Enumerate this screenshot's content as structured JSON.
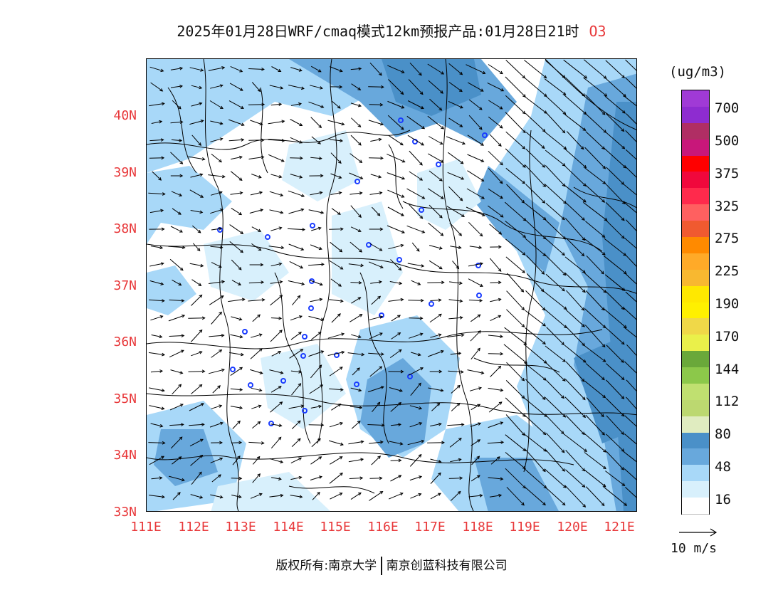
{
  "title": {
    "main": "2025年01月28日WRF/cmaq模式12km预报产品:01月28日21时",
    "species": "O3"
  },
  "axes": {
    "lat_labels": [
      "40N",
      "39N",
      "38N",
      "37N",
      "36N",
      "35N",
      "34N",
      "33N"
    ],
    "lon_labels": [
      "111E",
      "112E",
      "113E",
      "114E",
      "115E",
      "116E",
      "117E",
      "118E",
      "119E",
      "120E",
      "121E"
    ]
  },
  "colorbar": {
    "unit": "(ug/m3)",
    "labels": [
      "700",
      "500",
      "375",
      "325",
      "275",
      "225",
      "190",
      "170",
      "144",
      "112",
      "80",
      "48",
      "16"
    ],
    "colors": [
      "#a03ad6",
      "#8e2cd0",
      "#b02e64",
      "#c8177a",
      "#ff0000",
      "#f0083c",
      "#ff2a4c",
      "#ff6060",
      "#f05a30",
      "#ff8a00",
      "#ffaa28",
      "#f8b830",
      "#ffe800",
      "#fff000",
      "#f0d848",
      "#eaf04a",
      "#6aa83a",
      "#8cc84a",
      "#c0e070",
      "#bcd870",
      "#e0ecc0",
      "#4a90c8",
      "#68a8dc",
      "#a8d8f8",
      "#d8f0fc",
      "#ffffff"
    ]
  },
  "vector_reference": {
    "label": "10 m/s"
  },
  "copyright": {
    "left": "版权所有:南京大学",
    "right": "南京创蓝科技有限公司"
  },
  "map_colors": {
    "c16": "#d8f0fc",
    "c32": "#a8d8f8",
    "c48": "#68a8dc",
    "c64": "#4a90c8"
  }
}
